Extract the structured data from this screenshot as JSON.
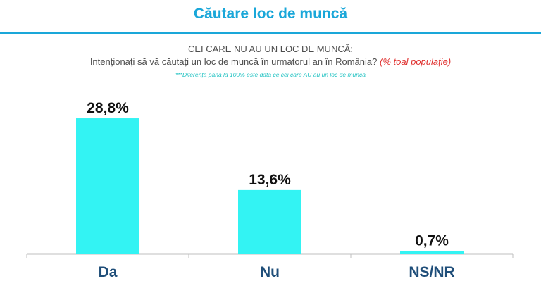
{
  "header": {
    "title": "Căutare loc de muncă",
    "question_line1": "CEI CARE NU AU UN LOC DE MUNCĂ:",
    "question_line2": "Intenționați să vă căutați un loc de muncă în urmatorul an în România?",
    "question_note": "(% toal populație)",
    "footnote": "***Diferența până la 100% este dată ce cei care AU au un loc de muncă"
  },
  "colors": {
    "accent": "#1aa7d9",
    "bar": "#33f3f3",
    "note": "#e0312f",
    "category_text": "#1f4e79"
  },
  "chart_data": {
    "type": "bar",
    "categories": [
      "Da",
      "Nu",
      "NS/NR"
    ],
    "values": [
      28.8,
      13.6,
      0.7
    ],
    "value_labels": [
      "28,8%",
      "13,6%",
      "0,7%"
    ],
    "grid": false,
    "legend": false
  }
}
